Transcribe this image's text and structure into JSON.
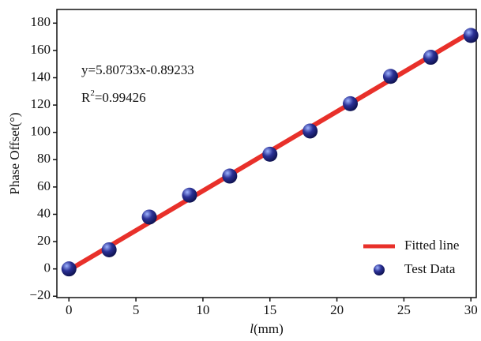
{
  "chart_data": {
    "type": "scatter",
    "x_label_parts": [
      "l",
      "(mm)"
    ],
    "y_label": "Phase Offset(°)",
    "annotations": {
      "equation": "y=5.80733x-0.89233",
      "r2_label": "R",
      "r2_sup": "2",
      "r2_value": "=0.99426"
    },
    "xlim": [
      -0.9,
      30.4
    ],
    "ylim": [
      -21,
      190
    ],
    "xticks": [
      0,
      5,
      10,
      15,
      20,
      25,
      30
    ],
    "yticks": [
      {
        "value": -20,
        "label": "−20"
      },
      0,
      20,
      40,
      60,
      80,
      100,
      120,
      140,
      160,
      180
    ],
    "legend": "lower right",
    "series": [
      {
        "name": "Fitted line",
        "type": "line",
        "color": "#e8302a",
        "x": [
          0,
          30
        ],
        "values": [
          -0.89233,
          173.32757
        ]
      },
      {
        "name": "Test Data",
        "type": "scatter",
        "color": "#2b3196",
        "x": [
          0,
          3,
          6,
          9,
          12,
          15,
          18,
          21,
          24,
          27,
          30
        ],
        "values": [
          0,
          14,
          38,
          54,
          68,
          84,
          101,
          121,
          141,
          155,
          171
        ]
      }
    ]
  }
}
